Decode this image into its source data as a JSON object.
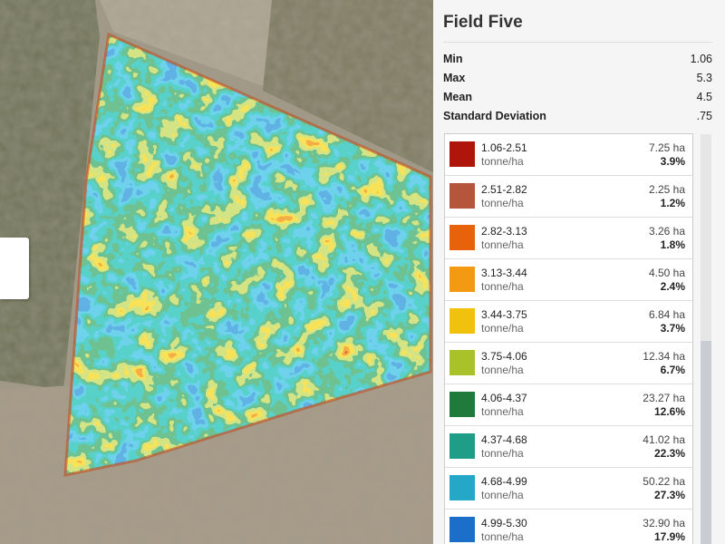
{
  "panel": {
    "title": "Field Five",
    "stats": [
      {
        "label": "Min",
        "value": "1.06"
      },
      {
        "label": "Max",
        "value": "5.3"
      },
      {
        "label": "Mean",
        "value": "4.5"
      },
      {
        "label": "Standard Deviation",
        "value": ".75"
      }
    ],
    "legend": [
      {
        "range": "1.06-2.51",
        "unit": "tonne/ha",
        "area": "7.25 ha",
        "share": "3.9%",
        "color": "#b0150c"
      },
      {
        "range": "2.51-2.82",
        "unit": "tonne/ha",
        "area": "2.25 ha",
        "share": "1.2%",
        "color": "#b5563c"
      },
      {
        "range": "2.82-3.13",
        "unit": "tonne/ha",
        "area": "3.26 ha",
        "share": "1.8%",
        "color": "#e8620c"
      },
      {
        "range": "3.13-3.44",
        "unit": "tonne/ha",
        "area": "4.50 ha",
        "share": "2.4%",
        "color": "#f39a12"
      },
      {
        "range": "3.44-3.75",
        "unit": "tonne/ha",
        "area": "6.84 ha",
        "share": "3.7%",
        "color": "#f0c20e"
      },
      {
        "range": "3.75-4.06",
        "unit": "tonne/ha",
        "area": "12.34 ha",
        "share": "6.7%",
        "color": "#a9c22a"
      },
      {
        "range": "4.06-4.37",
        "unit": "tonne/ha",
        "area": "23.27 ha",
        "share": "12.6%",
        "color": "#1f7a3c"
      },
      {
        "range": "4.37-4.68",
        "unit": "tonne/ha",
        "area": "41.02 ha",
        "share": "22.3%",
        "color": "#1e9e86"
      },
      {
        "range": "4.68-4.99",
        "unit": "tonne/ha",
        "area": "50.22 ha",
        "share": "27.3%",
        "color": "#25a8c8"
      },
      {
        "range": "4.99-5.30",
        "unit": "tonne/ha",
        "area": "32.90 ha",
        "share": "17.9%",
        "color": "#1c6fc9"
      }
    ]
  }
}
